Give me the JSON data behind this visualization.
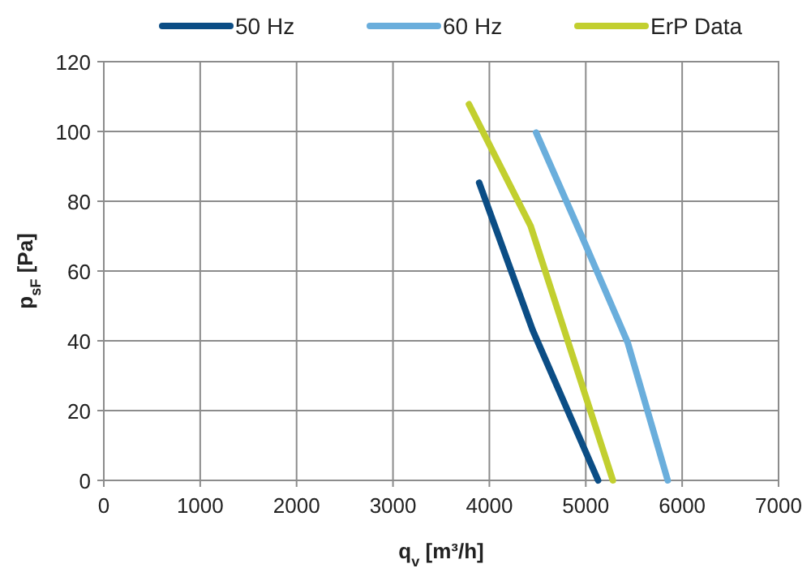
{
  "chart_data": {
    "type": "line",
    "xlabel": "q$_{v}$ [m³/h]",
    "ylabel": "p$_{sF}$ [Pa]",
    "xlim": [
      0,
      7000
    ],
    "xticks": [
      0,
      1000,
      2000,
      3000,
      4000,
      5000,
      6000,
      7000
    ],
    "ylim": [
      0,
      120
    ],
    "yticks": [
      0,
      20,
      40,
      60,
      80,
      100,
      120
    ],
    "grid": true,
    "legend": "top",
    "marker": "none",
    "line_style": "solid",
    "series": [
      {
        "name": "50 Hz",
        "color": "#0b4d85",
        "x": [
          3894,
          4450,
          5128
        ],
        "values": [
          85.3,
          43,
          0
        ]
      },
      {
        "name": "60 Hz",
        "color": "#6aaedc",
        "x": [
          4485,
          4990,
          5435,
          5850
        ],
        "values": [
          99.7,
          68,
          39.5,
          0
        ]
      },
      {
        "name": "ErP Data",
        "color": "#c2cf2f",
        "x": [
          3788,
          4428,
          5281
        ],
        "values": [
          107.8,
          72.9,
          0
        ]
      }
    ]
  }
}
